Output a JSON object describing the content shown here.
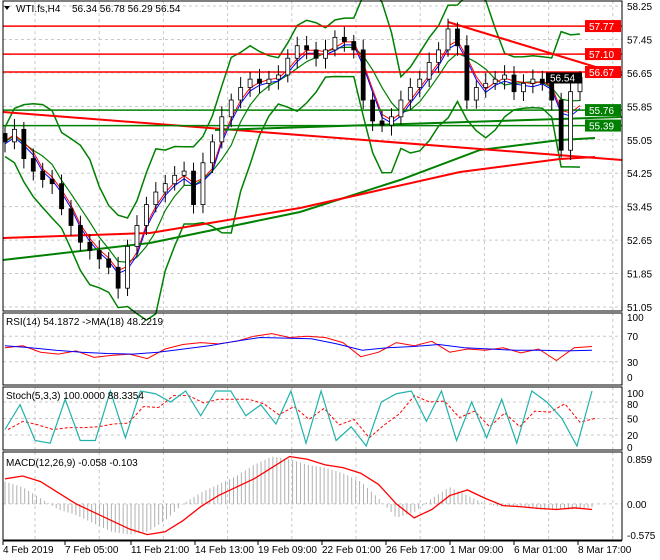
{
  "chart_data": [
    {
      "type": "candlestick",
      "title": "WTI.fs,H4",
      "ohlc_label": "56.34 56.78 56.29 56.54",
      "y_ticks": [
        "58.25",
        "57.45",
        "56.65",
        "55.85",
        "55.05",
        "54.25",
        "53.45",
        "52.65",
        "51.85",
        "51.05"
      ],
      "ylim": [
        51.05,
        58.25
      ],
      "closes": [
        55.0,
        55.3,
        54.6,
        54.3,
        54.1,
        54.0,
        53.4,
        53.0,
        52.6,
        52.4,
        52.2,
        52.0,
        51.5,
        52.5,
        53.0,
        53.5,
        53.8,
        54.0,
        54.2,
        54.3,
        53.5,
        54.5,
        55.0,
        55.6,
        56.0,
        56.3,
        56.5,
        56.4,
        56.5,
        56.6,
        57.0,
        57.3,
        57.2,
        57.0,
        57.2,
        57.5,
        57.4,
        57.2,
        56.0,
        55.5,
        55.4,
        55.6,
        56.0,
        56.3,
        56.5,
        56.9,
        57.2,
        57.7,
        57.3,
        56.0,
        56.3,
        56.4,
        56.5,
        56.6,
        56.2,
        56.4,
        56.5,
        56.4,
        56.0,
        54.8,
        56.2,
        56.54
      ],
      "price_lines": [
        {
          "value": "57.77",
          "color": "#ff0000"
        },
        {
          "value": "57.10",
          "color": "#ff0000"
        },
        {
          "value": "56.67",
          "color": "#ff0000"
        },
        {
          "value": "55.76",
          "color": "#008000"
        },
        {
          "value": "55.39",
          "color": "#008000"
        }
      ],
      "current_price": "56.54"
    },
    {
      "type": "line",
      "title": "RSI(14) 54.1872  ->MA(18) 48.2219",
      "y_ticks": [
        "100",
        "70",
        "30",
        "0"
      ],
      "ylim": [
        0,
        100
      ],
      "series": [
        {
          "color": "#ff0000",
          "values": [
            52,
            55,
            45,
            42,
            47,
            37,
            40,
            42,
            35,
            50,
            57,
            60,
            58,
            62,
            70,
            74,
            68,
            70,
            68,
            60,
            38,
            45,
            60,
            55,
            62,
            45,
            50,
            48,
            52,
            44,
            50,
            32,
            52,
            54
          ]
        },
        {
          "color": "#0000ff",
          "values": [
            55,
            52,
            48,
            45,
            43,
            42,
            45,
            50,
            55,
            62,
            68,
            67,
            66,
            58,
            48,
            52,
            54,
            57,
            52,
            50,
            48,
            48,
            47,
            48
          ]
        }
      ]
    },
    {
      "type": "line",
      "title": "Stoch(5,3,3) 100.0000 88.3354",
      "y_ticks": [
        "100",
        "80",
        "50",
        "20",
        "0"
      ],
      "ylim": [
        0,
        100
      ],
      "series": [
        {
          "color": "#20b2aa",
          "values": [
            30,
            75,
            10,
            5,
            85,
            10,
            10,
            100,
            15,
            100,
            95,
            80,
            100,
            55,
            100,
            100,
            55,
            75,
            40,
            100,
            5,
            100,
            10,
            35,
            0,
            80,
            95,
            100,
            45,
            100,
            10,
            80,
            15,
            85,
            5,
            100,
            80,
            50,
            0,
            100
          ]
        }
      ]
    },
    {
      "type": "bar+line",
      "title": "MACD(12,26,9) -0.058 -0.103",
      "y_ticks": [
        "0.859",
        "0.00",
        "-0.575"
      ],
      "ylim": [
        -0.575,
        0.859
      ],
      "histogram": [
        0.4,
        0.3,
        0.1,
        -0.1,
        -0.2,
        -0.35,
        -0.5,
        -0.55,
        -0.5,
        -0.3,
        0.0,
        0.2,
        0.35,
        0.5,
        0.7,
        0.85,
        0.8,
        0.7,
        0.65,
        0.55,
        0.4,
        0.1,
        -0.25,
        -0.15,
        0.1,
        0.3,
        0.15,
        0.0,
        -0.05,
        -0.05,
        -0.1,
        -0.1,
        -0.1,
        -0.06
      ],
      "signal": [
        0.45,
        0.5,
        0.4,
        0.2,
        0.0,
        -0.15,
        -0.3,
        -0.45,
        -0.55,
        -0.5,
        -0.3,
        -0.05,
        0.15,
        0.3,
        0.45,
        0.65,
        0.85,
        0.8,
        0.7,
        0.65,
        0.55,
        0.35,
        0.0,
        -0.25,
        -0.1,
        0.15,
        0.25,
        0.1,
        -0.03,
        -0.05,
        -0.08,
        -0.1,
        -0.07,
        -0.1
      ]
    }
  ],
  "x_labels": [
    "4 Feb 2019",
    "7 Feb 05:00",
    "11 Feb 21:00",
    "14 Feb 13:00",
    "19 Feb 09:00",
    "22 Feb 01:00",
    "26 Feb 17:00",
    "1 Mar 09:00",
    "6 Mar 01:00",
    "8 Mar 17:00"
  ]
}
